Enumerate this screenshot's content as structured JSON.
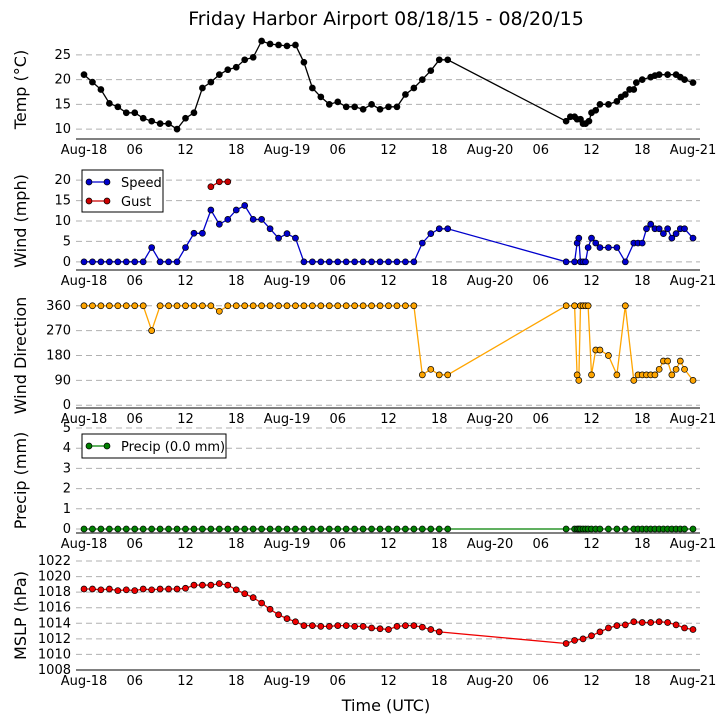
{
  "title": "Friday Harbor Airport 08/18/15 - 08/20/15",
  "xlabel": "Time (UTC)",
  "x_tick_labels": [
    "Aug-18",
    "06",
    "12",
    "18",
    "Aug-19",
    "06",
    "12",
    "18",
    "Aug-20",
    "06",
    "12",
    "18",
    "Aug-21"
  ],
  "colors": {
    "temp": "#000000",
    "speed": "#0000cc",
    "gust": "#cc0000",
    "dir": "#ffa500",
    "precip": "#008000",
    "mslp": "#ee0000",
    "grid": "#b0b0b0"
  },
  "chart_data": [
    {
      "id": "temp",
      "type": "line",
      "ylabel": "Temp (°C)",
      "ylim": [
        8,
        28
      ],
      "yticks": [
        10,
        15,
        20,
        25
      ],
      "xlim_hours": [
        0,
        72
      ],
      "series": [
        {
          "name": "Temp",
          "color": "#000000",
          "x": [
            0,
            1,
            2,
            3,
            4,
            5,
            6,
            7,
            8,
            9,
            10,
            11,
            12,
            13,
            14,
            15,
            16,
            17,
            18,
            19,
            20,
            21,
            22,
            23,
            24,
            25,
            26,
            27,
            28,
            29,
            30,
            31,
            32,
            33,
            34,
            35,
            36,
            37,
            38,
            39,
            40,
            41,
            42,
            43,
            57,
            57.5,
            58,
            58.3,
            58.7,
            59,
            59.3,
            59.7,
            60,
            60.5,
            61,
            62,
            63,
            63.5,
            64,
            64.5,
            65,
            65.3,
            66,
            67,
            67.5,
            68,
            69,
            70,
            70.5,
            71,
            72
          ],
          "y": [
            21,
            19.5,
            18,
            15.2,
            14.5,
            13.3,
            13.3,
            12.2,
            11.6,
            11.1,
            11.1,
            10,
            12.2,
            13.3,
            18.3,
            19.5,
            21,
            22,
            22.5,
            24,
            24.5,
            27.8,
            27.2,
            27,
            26.8,
            27,
            23.5,
            18.3,
            16.5,
            15,
            15.5,
            14.5,
            14.5,
            14,
            15,
            14,
            14.5,
            14.5,
            17,
            18.3,
            20,
            21.8,
            24,
            24,
            11.6,
            12.5,
            12.5,
            12,
            12,
            11.1,
            11.1,
            11.6,
            13.3,
            13.8,
            15,
            15,
            15.6,
            16.5,
            17,
            18,
            18,
            19.4,
            20,
            20.5,
            20.8,
            21,
            21,
            21,
            20.5,
            20,
            19.4
          ]
        }
      ]
    },
    {
      "id": "wind",
      "type": "line",
      "ylabel": "Wind (mph)",
      "ylim": [
        -2,
        22
      ],
      "yticks": [
        0,
        5,
        10,
        15,
        20
      ],
      "xlim_hours": [
        0,
        72
      ],
      "series": [
        {
          "name": "Speed",
          "color": "#0000cc",
          "x": [
            0,
            1,
            2,
            3,
            4,
            5,
            6,
            7,
            8,
            9,
            10,
            11,
            12,
            13,
            14,
            15,
            16,
            17,
            18,
            19,
            20,
            21,
            22,
            23,
            24,
            25,
            26,
            27,
            28,
            29,
            30,
            31,
            32,
            33,
            34,
            35,
            36,
            37,
            38,
            39,
            40,
            41,
            42,
            43,
            57,
            58,
            58.3,
            58.5,
            58.7,
            59,
            59.3,
            59.6,
            60,
            60.5,
            61,
            62,
            63,
            64,
            65,
            65.5,
            66,
            66.5,
            67,
            67.5,
            68,
            68.5,
            69,
            69.5,
            70,
            70.5,
            71,
            72
          ],
          "y": [
            0,
            0,
            0,
            0,
            0,
            0,
            0,
            0,
            3.5,
            0,
            0,
            0,
            3.5,
            7,
            7,
            12.7,
            9.2,
            10.4,
            12.7,
            13.8,
            10.4,
            10.4,
            8.1,
            5.8,
            6.9,
            5.8,
            0,
            0,
            0,
            0,
            0,
            0,
            0,
            0,
            0,
            0,
            0,
            0,
            0,
            0,
            4.6,
            6.9,
            8.1,
            8.1,
            0,
            0,
            4.6,
            5.8,
            0,
            0,
            0,
            3.5,
            5.8,
            4.6,
            3.5,
            3.5,
            3.5,
            0,
            4.6,
            4.6,
            4.6,
            8.1,
            9.2,
            8.1,
            8.1,
            6.9,
            8.1,
            5.8,
            6.9,
            8.1,
            8.1,
            5.8
          ]
        },
        {
          "name": "Gust",
          "color": "#cc0000",
          "x": [
            15,
            16,
            17
          ],
          "y": [
            18.4,
            19.6,
            19.6
          ]
        }
      ]
    },
    {
      "id": "dir",
      "type": "line",
      "ylabel": "Wind Direction",
      "ylim": [
        -10,
        370
      ],
      "yticks": [
        0,
        90,
        180,
        270,
        360
      ],
      "xlim_hours": [
        0,
        72
      ],
      "series": [
        {
          "name": "Direction",
          "color": "#ffa500",
          "x": [
            0,
            1,
            2,
            3,
            4,
            5,
            6,
            7,
            8,
            9,
            10,
            11,
            12,
            13,
            14,
            15,
            16,
            17,
            18,
            19,
            20,
            21,
            22,
            23,
            24,
            25,
            26,
            27,
            28,
            29,
            30,
            31,
            32,
            33,
            34,
            35,
            36,
            37,
            38,
            39,
            40,
            41,
            42,
            43,
            57,
            58,
            58.3,
            58.5,
            58.7,
            59,
            59.3,
            59.6,
            60,
            60.5,
            61,
            62,
            63,
            64,
            65,
            65.5,
            66,
            66.5,
            67,
            67.5,
            68,
            68.5,
            69,
            69.5,
            70,
            70.5,
            71,
            72
          ],
          "y": [
            360,
            360,
            360,
            360,
            360,
            360,
            360,
            360,
            270,
            360,
            360,
            360,
            360,
            360,
            360,
            360,
            340,
            360,
            360,
            360,
            360,
            360,
            360,
            360,
            360,
            360,
            360,
            360,
            360,
            360,
            360,
            360,
            360,
            360,
            360,
            360,
            360,
            360,
            360,
            360,
            110,
            130,
            110,
            110,
            360,
            360,
            110,
            90,
            360,
            360,
            360,
            360,
            110,
            200,
            200,
            180,
            110,
            360,
            90,
            110,
            110,
            110,
            110,
            110,
            130,
            160,
            160,
            110,
            130,
            160,
            130,
            90
          ]
        }
      ]
    },
    {
      "id": "precip",
      "type": "line",
      "ylabel": "Precip (mm)",
      "ylim": [
        -0.2,
        5
      ],
      "yticks": [
        0,
        1,
        2,
        3,
        4,
        5
      ],
      "xlim_hours": [
        0,
        72
      ],
      "legend": "Precip (0.0 mm)",
      "series": [
        {
          "name": "Precip",
          "color": "#008000",
          "x": [
            0,
            1,
            2,
            3,
            4,
            5,
            6,
            7,
            8,
            9,
            10,
            11,
            12,
            13,
            14,
            15,
            16,
            17,
            18,
            19,
            20,
            21,
            22,
            23,
            24,
            25,
            26,
            27,
            28,
            29,
            30,
            31,
            32,
            33,
            34,
            35,
            36,
            37,
            38,
            39,
            40,
            41,
            42,
            43,
            57,
            58,
            58.3,
            58.5,
            58.7,
            59,
            59.3,
            59.6,
            60,
            60.5,
            61,
            62,
            63,
            64,
            65,
            65.5,
            66,
            66.5,
            67,
            67.5,
            68,
            68.5,
            69,
            69.5,
            70,
            70.5,
            71,
            72
          ],
          "y": [
            0,
            0,
            0,
            0,
            0,
            0,
            0,
            0,
            0,
            0,
            0,
            0,
            0,
            0,
            0,
            0,
            0,
            0,
            0,
            0,
            0,
            0,
            0,
            0,
            0,
            0,
            0,
            0,
            0,
            0,
            0,
            0,
            0,
            0,
            0,
            0,
            0,
            0,
            0,
            0,
            0,
            0,
            0,
            0,
            0,
            0,
            0,
            0,
            0,
            0,
            0,
            0,
            0,
            0,
            0,
            0,
            0,
            0,
            0,
            0,
            0,
            0,
            0,
            0,
            0,
            0,
            0,
            0,
            0,
            0,
            0,
            0
          ]
        }
      ]
    },
    {
      "id": "mslp",
      "type": "line",
      "ylabel": "MSLP (hPa)",
      "ylim": [
        1008,
        1022
      ],
      "yticks": [
        1008,
        1010,
        1012,
        1014,
        1016,
        1018,
        1020,
        1022
      ],
      "xlim_hours": [
        0,
        72
      ],
      "series": [
        {
          "name": "MSLP",
          "color": "#ee0000",
          "x": [
            0,
            1,
            2,
            3,
            4,
            5,
            6,
            7,
            8,
            9,
            10,
            11,
            12,
            13,
            14,
            15,
            16,
            17,
            18,
            19,
            20,
            21,
            22,
            23,
            24,
            25,
            26,
            27,
            28,
            29,
            30,
            31,
            32,
            33,
            34,
            35,
            36,
            37,
            38,
            39,
            40,
            41,
            42,
            57,
            58,
            59,
            60,
            61,
            62,
            63,
            64,
            65,
            66,
            67,
            68,
            69,
            70,
            71,
            72
          ],
          "y": [
            1018.4,
            1018.4,
            1018.3,
            1018.4,
            1018.2,
            1018.3,
            1018.2,
            1018.4,
            1018.3,
            1018.4,
            1018.4,
            1018.4,
            1018.5,
            1018.9,
            1018.9,
            1018.9,
            1019.1,
            1018.9,
            1018.3,
            1017.8,
            1017.3,
            1016.6,
            1015.8,
            1015.1,
            1014.6,
            1014.2,
            1013.7,
            1013.7,
            1013.6,
            1013.6,
            1013.7,
            1013.7,
            1013.6,
            1013.6,
            1013.4,
            1013.3,
            1013.2,
            1013.6,
            1013.7,
            1013.7,
            1013.5,
            1013.2,
            1012.9,
            1011.4,
            1011.8,
            1012,
            1012.4,
            1012.9,
            1013.4,
            1013.7,
            1013.8,
            1014.2,
            1014.1,
            1014.1,
            1014.2,
            1014.1,
            1013.8,
            1013.4,
            1013.2
          ]
        }
      ]
    }
  ]
}
